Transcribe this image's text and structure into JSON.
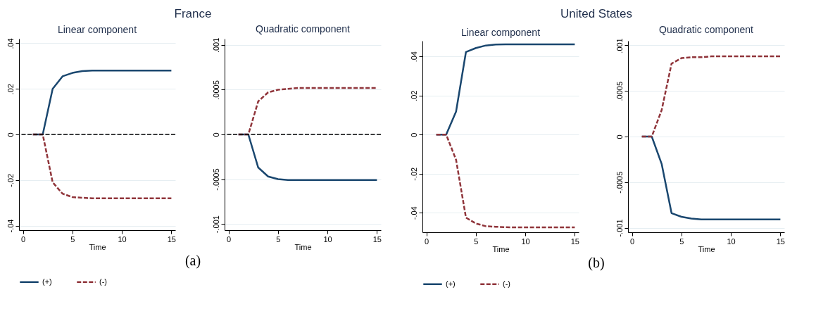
{
  "chart_data": [
    {
      "type": "line",
      "title": "Linear component",
      "xlabel": "Time",
      "annotations": [
        "France",
        "(a)"
      ],
      "x": [
        1,
        2,
        3,
        4,
        5,
        6,
        7,
        8,
        9,
        10,
        11,
        12,
        13,
        14,
        15
      ],
      "xlim": [
        -0.4,
        15.4
      ],
      "xticks": [
        0,
        5,
        10,
        15
      ],
      "ylim": [
        -0.042,
        0.042
      ],
      "yticks": [
        {
          "value": -0.04,
          "label": "-.04"
        },
        {
          "value": -0.02,
          "label": "-.02"
        },
        {
          "value": 0,
          "label": "0"
        },
        {
          "value": 0.02,
          "label": ".02"
        },
        {
          "value": 0.04,
          "label": ".04"
        }
      ],
      "grid": "y",
      "legend": "bottom",
      "ref_lines": [
        {
          "axis": "y",
          "value": 0,
          "color": "#000000",
          "line_style": "dashed"
        }
      ],
      "series": [
        {
          "name": "(+)",
          "color": "#1a476f",
          "line_style": "solid",
          "values": [
            0,
            0,
            0.02,
            0.0255,
            0.027,
            0.0278,
            0.028,
            0.028,
            0.028,
            0.028,
            0.028,
            0.028,
            0.028,
            0.028,
            0.028
          ]
        },
        {
          "name": "(-)",
          "color": "#90353b",
          "line_style": "dashed",
          "values": [
            0,
            0,
            -0.021,
            -0.026,
            -0.0275,
            -0.0278,
            -0.028,
            -0.028,
            -0.028,
            -0.028,
            -0.028,
            -0.028,
            -0.028,
            -0.028,
            -0.028
          ]
        }
      ]
    },
    {
      "type": "line",
      "title": "Quadratic component",
      "xlabel": "Time",
      "x": [
        1,
        2,
        3,
        4,
        5,
        6,
        7,
        8,
        9,
        10,
        11,
        12,
        13,
        14,
        15
      ],
      "xlim": [
        -0.4,
        15.4
      ],
      "xticks": [
        0,
        5,
        10,
        15
      ],
      "ylim": [
        -0.00107,
        0.00107
      ],
      "yticks": [
        {
          "value": -0.001,
          "label": "-.001"
        },
        {
          "value": -0.0005,
          "label": "-.0005"
        },
        {
          "value": 0,
          "label": "0"
        },
        {
          "value": 0.0005,
          "label": ".0005"
        },
        {
          "value": 0.001,
          "label": ".001"
        }
      ],
      "grid": "y",
      "legend": "bottom",
      "ref_lines": [
        {
          "axis": "y",
          "value": 0,
          "color": "#000000",
          "line_style": "dashed"
        }
      ],
      "series": [
        {
          "name": "(+)",
          "color": "#1a476f",
          "line_style": "solid",
          "values": [
            0,
            0,
            -0.00037,
            -0.00047,
            -0.0005,
            -0.00051,
            -0.00051,
            -0.00051,
            -0.00051,
            -0.00051,
            -0.00051,
            -0.00051,
            -0.00051,
            -0.00051,
            -0.00051
          ]
        },
        {
          "name": "(-)",
          "color": "#90353b",
          "line_style": "dashed",
          "values": [
            0,
            0,
            0.00037,
            0.00047,
            0.0005,
            0.00051,
            0.00052,
            0.00052,
            0.00052,
            0.00052,
            0.00052,
            0.00052,
            0.00052,
            0.00052,
            0.00052
          ]
        }
      ]
    },
    {
      "type": "line",
      "title": "Linear component",
      "xlabel": "Time",
      "annotations": [
        "United States",
        "(b)"
      ],
      "x": [
        1,
        2,
        3,
        4,
        5,
        6,
        7,
        8,
        9,
        10,
        11,
        12,
        13,
        14,
        15
      ],
      "xlim": [
        -0.4,
        15.4
      ],
      "xticks": [
        0,
        5,
        10,
        15
      ],
      "ylim": [
        -0.05,
        0.048
      ],
      "yticks": [
        {
          "value": -0.04,
          "label": "-.04"
        },
        {
          "value": -0.02,
          "label": "-.02"
        },
        {
          "value": 0,
          "label": "0"
        },
        {
          "value": 0.02,
          "label": ".02"
        },
        {
          "value": 0.04,
          "label": ".04"
        }
      ],
      "grid": "y",
      "legend": "bottom",
      "series": [
        {
          "name": "(+)",
          "color": "#1a476f",
          "line_style": "solid",
          "values": [
            0,
            0,
            0.0118,
            0.0423,
            0.0443,
            0.0456,
            0.0461,
            0.0462,
            0.0462,
            0.0462,
            0.0462,
            0.0462,
            0.0462,
            0.0462,
            0.0462
          ]
        },
        {
          "name": "(-)",
          "color": "#90353b",
          "line_style": "dashed",
          "values": [
            0,
            0,
            -0.0129,
            -0.0425,
            -0.0455,
            -0.0469,
            -0.0472,
            -0.0474,
            -0.0475,
            -0.0475,
            -0.0475,
            -0.0475,
            -0.0475,
            -0.0475,
            -0.0475
          ]
        }
      ]
    },
    {
      "type": "line",
      "title": "Quadratic component",
      "xlabel": "Time",
      "x": [
        1,
        2,
        3,
        4,
        5,
        6,
        7,
        8,
        9,
        10,
        11,
        12,
        13,
        14,
        15
      ],
      "xlim": [
        -0.4,
        15.4
      ],
      "xticks": [
        0,
        5,
        10,
        15
      ],
      "ylim": [
        -0.00105,
        0.00105
      ],
      "yticks": [
        {
          "value": -0.001,
          "label": "-.001"
        },
        {
          "value": -0.0005,
          "label": "-.0005"
        },
        {
          "value": 0,
          "label": "0"
        },
        {
          "value": 0.0005,
          "label": ".0005"
        },
        {
          "value": 0.001,
          "label": ".001"
        }
      ],
      "grid": "y",
      "legend": "bottom",
      "series": [
        {
          "name": "(+)",
          "color": "#1a476f",
          "line_style": "solid",
          "values": [
            0,
            0,
            -0.0003,
            -0.00084,
            -0.00088,
            -0.0009,
            -0.00091,
            -0.00091,
            -0.00091,
            -0.00091,
            -0.00091,
            -0.00091,
            -0.00091,
            -0.00091,
            -0.00091
          ]
        },
        {
          "name": "(-)",
          "color": "#90353b",
          "line_style": "dashed",
          "values": [
            0,
            0,
            0.00029,
            0.0008,
            0.00086,
            0.00087,
            0.00087,
            0.00088,
            0.00088,
            0.00088,
            0.00088,
            0.00088,
            0.00088,
            0.00088,
            0.00088
          ]
        }
      ]
    }
  ]
}
